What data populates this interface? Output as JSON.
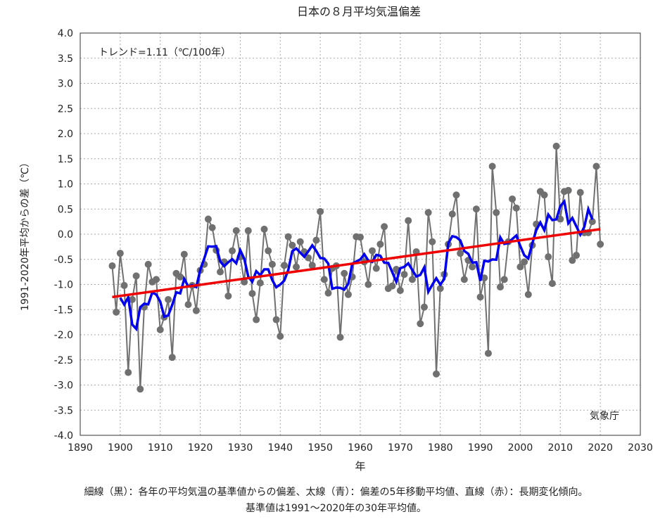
{
  "chart_data": {
    "type": "line",
    "title": "日本の８月平均気温偏差",
    "xlabel": "年",
    "ylabel": "1991-2020年平均からの差（℃）",
    "xlim": [
      1890,
      2030
    ],
    "ylim": [
      -4.0,
      4.0
    ],
    "x_ticks": [
      "1890",
      "1900",
      "1910",
      "1920",
      "1930",
      "1940",
      "1950",
      "1960",
      "1970",
      "1980",
      "1990",
      "2000",
      "2010",
      "2020",
      "2030"
    ],
    "y_ticks": [
      "4.0",
      "3.5",
      "3.0",
      "2.5",
      "2.0",
      "1.5",
      "1.0",
      "0.5",
      "0.0",
      "-0.5",
      "-1.0",
      "-1.5",
      "-2.0",
      "-2.5",
      "-3.0",
      "-3.5",
      "-4.0"
    ],
    "grid": true,
    "trend_label": "トレンド=1.11（℃/100年）",
    "source_label": "気象庁",
    "start_year": 1898,
    "values": [
      -0.63,
      -1.55,
      -0.38,
      -1.02,
      -2.75,
      -1.3,
      -0.83,
      -3.08,
      -1.45,
      -0.6,
      -0.95,
      -0.9,
      -1.9,
      -1.65,
      -1.3,
      -2.45,
      -0.78,
      -0.85,
      -0.4,
      -1.4,
      -1.02,
      -1.52,
      -0.72,
      -0.6,
      0.3,
      0.13,
      -0.32,
      -0.75,
      -0.55,
      -1.23,
      -0.33,
      0.07,
      -0.45,
      -0.95,
      0.07,
      -1.18,
      -1.7,
      -0.97,
      0.1,
      -0.33,
      -0.6,
      -1.7,
      -2.03,
      -0.62,
      -0.05,
      -0.22,
      -0.65,
      -0.15,
      -0.35,
      -0.47,
      -0.62,
      -0.12,
      0.45,
      -0.9,
      -1.17,
      -0.68,
      -0.63,
      -2.05,
      -0.78,
      -1.2,
      -0.85,
      -0.05,
      -0.06,
      -0.55,
      -1.0,
      -0.33,
      -0.68,
      -0.2,
      0.15,
      -1.08,
      -1.03,
      -0.7,
      -1.12,
      -0.8,
      0.27,
      -0.9,
      -0.35,
      -1.78,
      -1.45,
      0.43,
      -0.15,
      -2.78,
      -1.08,
      -0.8,
      -0.2,
      0.4,
      0.78,
      -0.38,
      -0.9,
      -0.52,
      -0.65,
      0.5,
      -1.25,
      -0.87,
      -2.37,
      1.35,
      0.43,
      -1.05,
      -0.9,
      -0.15,
      0.7,
      0.52,
      -0.65,
      -0.55,
      -1.2,
      -0.22,
      0.2,
      0.85,
      0.78,
      -0.45,
      -0.98,
      1.75,
      0.3,
      0.85,
      0.87,
      -0.52,
      -0.42,
      0.83,
      0.03,
      0.03,
      0.25,
      1.35,
      -0.2
    ],
    "moving_average_window": 5,
    "trend": {
      "x": [
        1898,
        2020
      ],
      "y": [
        -1.25,
        0.1
      ]
    },
    "colors": {
      "annual": "#707070",
      "moving_average": "#0000ee",
      "trend": "#ee0000"
    }
  },
  "caption": {
    "line1": "細線（黒）：各年の平均気温の基準値からの偏差、太線（青）：偏差の5年移動平均値、直線（赤）：長期変化傾向。",
    "line2": "基準値は1991～2020年の30年平均値。"
  }
}
